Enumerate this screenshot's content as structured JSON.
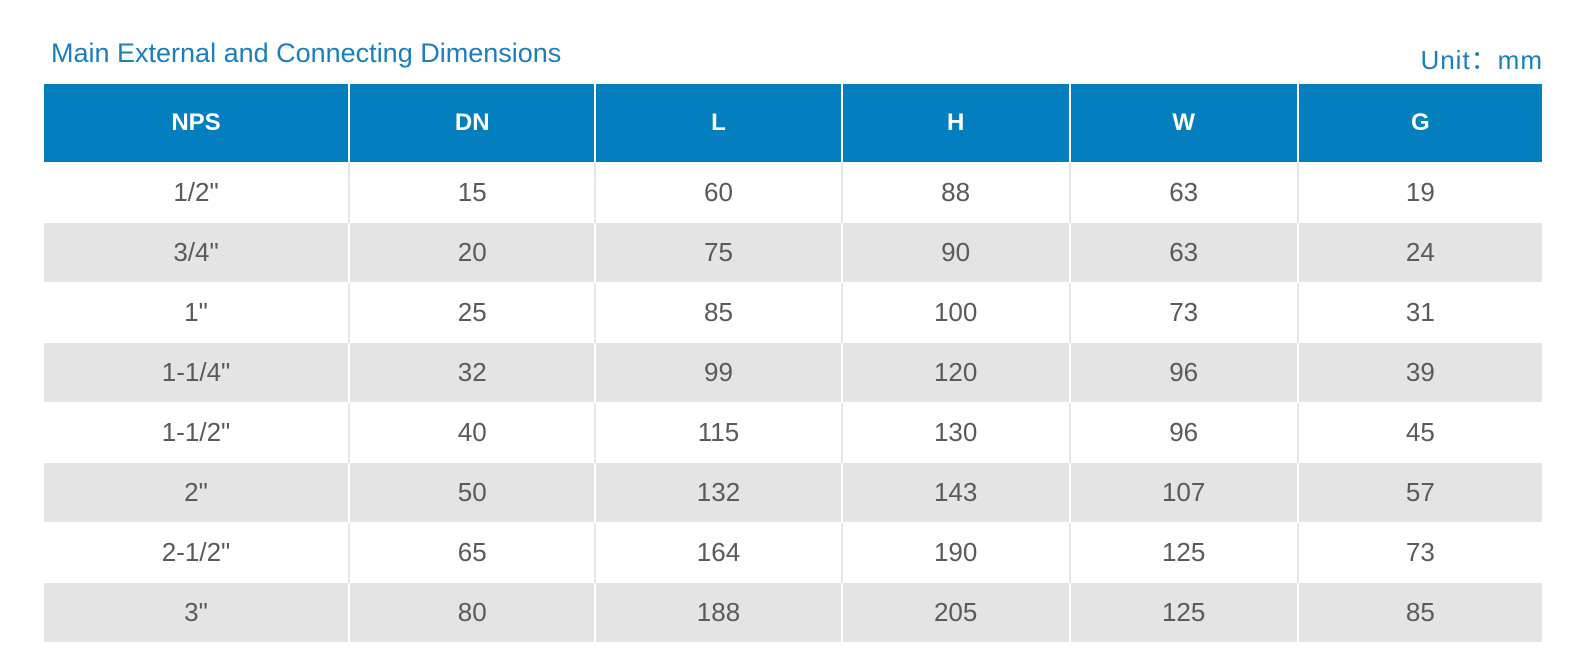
{
  "title": "Main External and Connecting Dimensions",
  "unit": "Unit：mm",
  "colors": {
    "header_bg": "#037ebf",
    "title_text": "#1a7fbf",
    "stripe_bg": "#e4e4e4"
  },
  "table": {
    "headers": [
      "NPS",
      "DN",
      "L",
      "H",
      "W",
      "G"
    ],
    "rows": [
      [
        "1/2\"",
        "15",
        "60",
        "88",
        "63",
        "19"
      ],
      [
        "3/4\"",
        "20",
        "75",
        "90",
        "63",
        "24"
      ],
      [
        "1\"",
        "25",
        "85",
        "100",
        "73",
        "31"
      ],
      [
        "1-1/4\"",
        "32",
        "99",
        "120",
        "96",
        "39"
      ],
      [
        "1-1/2\"",
        "40",
        "115",
        "130",
        "96",
        "45"
      ],
      [
        "2\"",
        "50",
        "132",
        "143",
        "107",
        "57"
      ],
      [
        "2-1/2\"",
        "65",
        "164",
        "190",
        "125",
        "73"
      ],
      [
        "3\"",
        "80",
        "188",
        "205",
        "125",
        "85"
      ]
    ]
  }
}
